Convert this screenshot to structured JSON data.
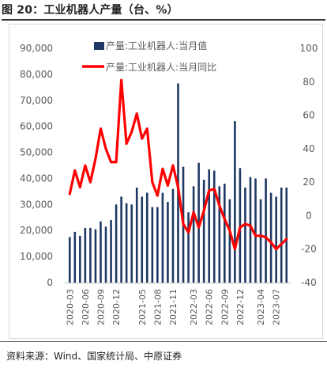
{
  "figure_title": "图 20：工业机器人产量（台、%）",
  "source": "资料来源：Wind、国家统计局、中原证券",
  "colors": {
    "bar": "#1f3864",
    "line": "#ff0000",
    "axis_text": "#595959"
  },
  "chart_data": {
    "type": "bar+line",
    "title": "",
    "categories": [
      "2020-03",
      "2020-04",
      "2020-05",
      "2020-06",
      "2020-07",
      "2020-08",
      "2020-09",
      "2020-10",
      "2020-11",
      "2020-12",
      "2021-01",
      "2021-02",
      "2021-03",
      "2021-04",
      "2021-05",
      "2021-06",
      "2021-07",
      "2021-08",
      "2021-09",
      "2021-10",
      "2021-11",
      "2021-12",
      "2022-01",
      "2022-02",
      "2022-03",
      "2022-04",
      "2022-05",
      "2022-06",
      "2022-07",
      "2022-08",
      "2022-09",
      "2022-10",
      "2022-11",
      "2022-12",
      "2023-01",
      "2023-02",
      "2023-03",
      "2023-04",
      "2023-05",
      "2023-06",
      "2023-07",
      "2023-08",
      "2023-09"
    ],
    "x_tick_labels": [
      "2020-03",
      "2020-06",
      "2020-09",
      "2020-12",
      "2021-05",
      "2021-08",
      "2021-11",
      "2022-03",
      "2022-06",
      "2022-09",
      "2022-12",
      "2023-04",
      "2023-07"
    ],
    "series": [
      {
        "name": "产量:工业机器人:当月值",
        "type": "bar",
        "axis": "left",
        "values": [
          17500,
          19500,
          18000,
          21000,
          21000,
          20500,
          23500,
          21500,
          24000,
          30000,
          33000,
          30500,
          30000,
          36500,
          33000,
          34500,
          29000,
          29000,
          34500,
          31000,
          36000,
          76500,
          44500,
          27000,
          37000,
          46000,
          39500,
          43500,
          43000,
          37000,
          38000,
          32000,
          62000,
          44000,
          36500,
          40500,
          40000,
          32000,
          40000,
          34500,
          33000,
          36500,
          36500
        ]
      },
      {
        "name": "产量:工业机器人:当月同比",
        "type": "line",
        "axis": "right",
        "values": [
          13,
          27,
          17,
          30,
          20,
          34,
          52,
          40,
          32,
          32,
          81,
          43,
          50,
          61,
          46,
          52,
          20,
          12,
          28,
          18,
          30,
          17,
          -5,
          -10,
          2,
          -7,
          3,
          15,
          16,
          6,
          -2,
          -9,
          -20,
          -7,
          -5,
          -6,
          -12,
          -12,
          -13,
          -16,
          -20,
          -17,
          -14
        ]
      }
    ],
    "y_left": {
      "min": 0,
      "max": 90000,
      "ticks": [
        "0",
        "10,000",
        "20,000",
        "30,000",
        "40,000",
        "50,000",
        "60,000",
        "70,000",
        "80,000",
        "90,000"
      ]
    },
    "y_right": {
      "min": -40,
      "max": 100,
      "ticks": [
        "-40",
        "-20",
        "0",
        "20",
        "40",
        "60",
        "80",
        "100"
      ]
    },
    "legend": {
      "placement": "top-center"
    },
    "grid": false
  }
}
